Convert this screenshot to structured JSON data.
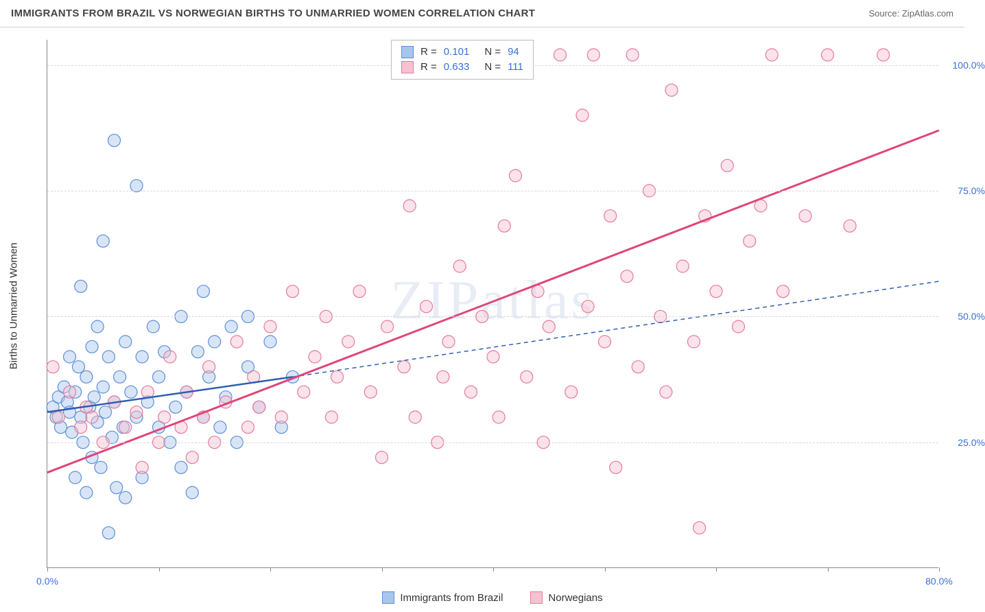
{
  "title": "IMMIGRANTS FROM BRAZIL VS NORWEGIAN BIRTHS TO UNMARRIED WOMEN CORRELATION CHART",
  "source": "Source: ZipAtlas.com",
  "watermark": "ZIPatlas",
  "y_axis_label": "Births to Unmarried Women",
  "chart": {
    "type": "scatter",
    "xlim": [
      0,
      80
    ],
    "ylim": [
      0,
      105
    ],
    "x_ticks": [
      0,
      10,
      20,
      30,
      40,
      50,
      60,
      70,
      80
    ],
    "x_tick_labels": {
      "0": "0.0%",
      "80": "80.0%"
    },
    "y_ticks": [
      25,
      50,
      75,
      100
    ],
    "y_tick_labels": {
      "25": "25.0%",
      "50": "50.0%",
      "75": "75.0%",
      "100": "100.0%"
    },
    "background_color": "#ffffff",
    "grid_color": "#d8d8d8",
    "tick_label_color": "#3b6fd6",
    "marker_radius": 9,
    "marker_opacity": 0.45,
    "series": [
      {
        "name": "Immigrants from Brazil",
        "color_fill": "#a8c5ed",
        "color_stroke": "#5b8fd6",
        "r_value": 0.101,
        "n_value": 94,
        "trend": {
          "x1": 0,
          "y1": 31,
          "x2": 22,
          "y2": 38,
          "style": "solid",
          "color": "#2e5db0",
          "width": 2.5,
          "ext_x2": 80,
          "ext_y2": 57,
          "ext_style": "dashed"
        },
        "points": [
          [
            0.5,
            32
          ],
          [
            0.8,
            30
          ],
          [
            1.0,
            34
          ],
          [
            1.2,
            28
          ],
          [
            1.5,
            36
          ],
          [
            1.8,
            33
          ],
          [
            2.0,
            31
          ],
          [
            2.0,
            42
          ],
          [
            2.2,
            27
          ],
          [
            2.5,
            35
          ],
          [
            2.5,
            18
          ],
          [
            2.8,
            40
          ],
          [
            3.0,
            30
          ],
          [
            3.0,
            56
          ],
          [
            3.2,
            25
          ],
          [
            3.5,
            38
          ],
          [
            3.5,
            15
          ],
          [
            3.8,
            32
          ],
          [
            4.0,
            44
          ],
          [
            4.0,
            22
          ],
          [
            4.2,
            34
          ],
          [
            4.5,
            29
          ],
          [
            4.5,
            48
          ],
          [
            4.8,
            20
          ],
          [
            5.0,
            36
          ],
          [
            5.0,
            65
          ],
          [
            5.2,
            31
          ],
          [
            5.5,
            7
          ],
          [
            5.5,
            42
          ],
          [
            5.8,
            26
          ],
          [
            6.0,
            85
          ],
          [
            6.0,
            33
          ],
          [
            6.2,
            16
          ],
          [
            6.5,
            38
          ],
          [
            6.8,
            28
          ],
          [
            7.0,
            45
          ],
          [
            7.0,
            14
          ],
          [
            7.5,
            35
          ],
          [
            8.0,
            76
          ],
          [
            8.0,
            30
          ],
          [
            8.5,
            42
          ],
          [
            8.5,
            18
          ],
          [
            9.0,
            33
          ],
          [
            9.5,
            48
          ],
          [
            10.0,
            28
          ],
          [
            10.0,
            38
          ],
          [
            10.5,
            43
          ],
          [
            11.0,
            25
          ],
          [
            11.5,
            32
          ],
          [
            12.0,
            50
          ],
          [
            12.0,
            20
          ],
          [
            12.5,
            35
          ],
          [
            13.0,
            15
          ],
          [
            13.5,
            43
          ],
          [
            14.0,
            30
          ],
          [
            14.0,
            55
          ],
          [
            14.5,
            38
          ],
          [
            15.0,
            45
          ],
          [
            15.5,
            28
          ],
          [
            16.0,
            34
          ],
          [
            16.5,
            48
          ],
          [
            17.0,
            25
          ],
          [
            18.0,
            40
          ],
          [
            18.0,
            50
          ],
          [
            19.0,
            32
          ],
          [
            20.0,
            45
          ],
          [
            21.0,
            28
          ],
          [
            22.0,
            38
          ]
        ]
      },
      {
        "name": "Norwegians",
        "color_fill": "#f5c2d0",
        "color_stroke": "#e57a9c",
        "r_value": 0.633,
        "n_value": 111,
        "trend": {
          "x1": 0,
          "y1": 19,
          "x2": 80,
          "y2": 87,
          "style": "solid",
          "color": "#e04578",
          "width": 3
        },
        "points": [
          [
            0.5,
            40
          ],
          [
            1.0,
            30
          ],
          [
            2.0,
            35
          ],
          [
            3.0,
            28
          ],
          [
            3.5,
            32
          ],
          [
            4.0,
            30
          ],
          [
            5.0,
            25
          ],
          [
            6.0,
            33
          ],
          [
            7.0,
            28
          ],
          [
            8.0,
            31
          ],
          [
            8.5,
            20
          ],
          [
            9.0,
            35
          ],
          [
            10.0,
            25
          ],
          [
            10.5,
            30
          ],
          [
            11.0,
            42
          ],
          [
            12.0,
            28
          ],
          [
            12.5,
            35
          ],
          [
            13.0,
            22
          ],
          [
            14.0,
            30
          ],
          [
            14.5,
            40
          ],
          [
            15.0,
            25
          ],
          [
            16.0,
            33
          ],
          [
            17.0,
            45
          ],
          [
            18.0,
            28
          ],
          [
            18.5,
            38
          ],
          [
            19.0,
            32
          ],
          [
            20.0,
            48
          ],
          [
            21.0,
            30
          ],
          [
            22.0,
            55
          ],
          [
            23.0,
            35
          ],
          [
            24.0,
            42
          ],
          [
            25.0,
            50
          ],
          [
            25.5,
            30
          ],
          [
            26.0,
            38
          ],
          [
            27.0,
            45
          ],
          [
            28.0,
            55
          ],
          [
            29.0,
            35
          ],
          [
            30.0,
            22
          ],
          [
            30.5,
            48
          ],
          [
            32.0,
            40
          ],
          [
            32.5,
            72
          ],
          [
            33.0,
            30
          ],
          [
            34.0,
            52
          ],
          [
            35.0,
            25
          ],
          [
            35.5,
            38
          ],
          [
            36.0,
            45
          ],
          [
            37.0,
            60
          ],
          [
            38.0,
            35
          ],
          [
            39.0,
            50
          ],
          [
            40.0,
            42
          ],
          [
            40.5,
            30
          ],
          [
            41.0,
            68
          ],
          [
            42.0,
            78
          ],
          [
            43.0,
            38
          ],
          [
            44.0,
            55
          ],
          [
            44.5,
            25
          ],
          [
            45.0,
            48
          ],
          [
            46.0,
            102
          ],
          [
            47.0,
            35
          ],
          [
            48.0,
            90
          ],
          [
            48.5,
            52
          ],
          [
            49.0,
            102
          ],
          [
            50.0,
            45
          ],
          [
            50.5,
            70
          ],
          [
            51.0,
            20
          ],
          [
            52.0,
            58
          ],
          [
            52.5,
            102
          ],
          [
            53.0,
            40
          ],
          [
            54.0,
            75
          ],
          [
            55.0,
            50
          ],
          [
            55.5,
            35
          ],
          [
            56.0,
            95
          ],
          [
            57.0,
            60
          ],
          [
            58.0,
            45
          ],
          [
            58.5,
            8
          ],
          [
            59.0,
            70
          ],
          [
            60.0,
            55
          ],
          [
            61.0,
            80
          ],
          [
            62.0,
            48
          ],
          [
            63.0,
            65
          ],
          [
            64.0,
            72
          ],
          [
            65.0,
            102
          ],
          [
            66.0,
            55
          ],
          [
            68.0,
            70
          ],
          [
            70.0,
            102
          ],
          [
            72.0,
            68
          ],
          [
            75.0,
            102
          ]
        ]
      }
    ],
    "legend_bottom": [
      {
        "label": "Immigrants from Brazil",
        "fill": "#a8c5ed",
        "stroke": "#5b8fd6"
      },
      {
        "label": "Norwegians",
        "fill": "#f5c2d0",
        "stroke": "#e57a9c"
      }
    ]
  }
}
